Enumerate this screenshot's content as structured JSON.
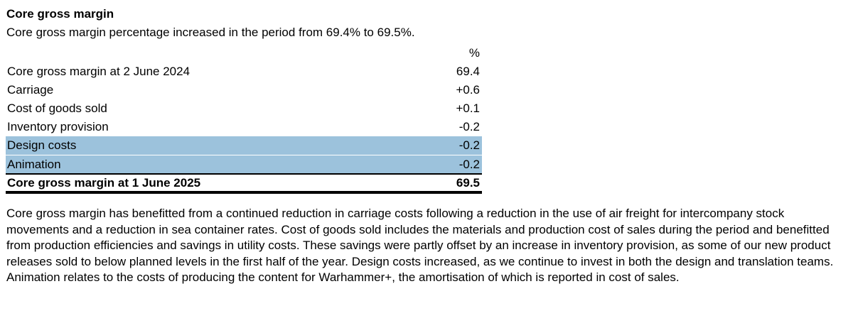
{
  "section": {
    "heading": "Core gross margin",
    "intro": "Core gross margin percentage increased in the period from 69.4% to 69.5%."
  },
  "table": {
    "unit": "%",
    "rows": [
      {
        "label": "Core gross margin at 2 June 2024",
        "value": "69.4"
      },
      {
        "label": "Carriage",
        "value": "+0.6"
      },
      {
        "label": "Cost of goods sold",
        "value": "+0.1"
      },
      {
        "label": "Inventory provision",
        "value": "-0.2"
      },
      {
        "label": "Design costs",
        "value": "-0.2"
      },
      {
        "label": "Animation",
        "value": "-0.2"
      }
    ],
    "total": {
      "label": "Core gross margin at 1 June 2025",
      "value": "69.5"
    },
    "highlight_color": "#9cc2dc"
  },
  "commentary": "Core gross margin has benefitted from a continued reduction in carriage costs following a reduction in the use of air freight for intercompany stock movements and a reduction in sea container rates. Cost of goods sold includes the materials and production cost of sales during the period and benefitted from production efficiencies and savings in utility costs. These savings were partly offset by an increase in inventory provision, as some of our new product releases sold to below planned levels in the first half of the year. Design costs increased, as we continue to invest in both the design and translation teams. Animation relates to the costs of producing the content for Warhammer+, the amortisation of which is reported in cost of sales."
}
